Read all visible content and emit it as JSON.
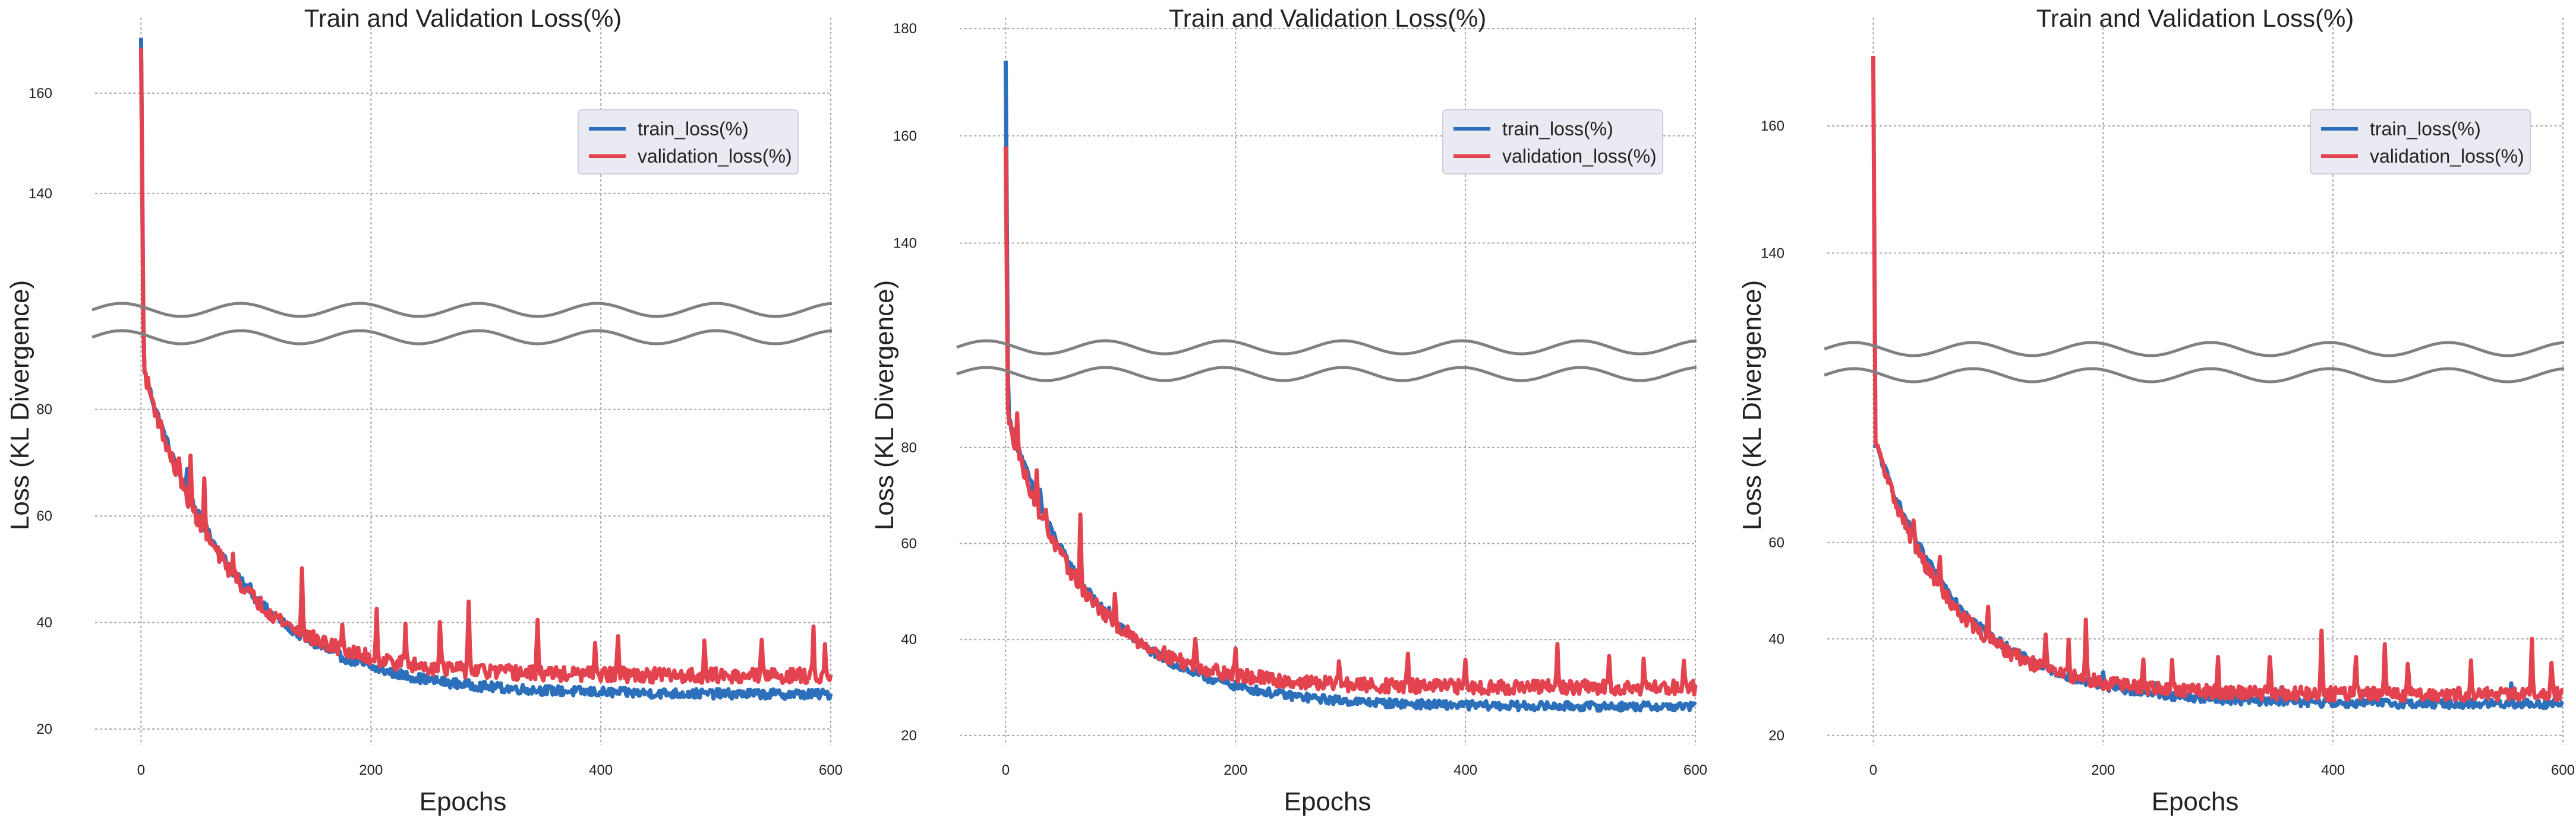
{
  "chart_data": [
    {
      "type": "line",
      "title": "Train and Validation Loss(%)",
      "xlabel": "Epochs",
      "ylabel": "Loss (KL Divergence)",
      "xlim": [
        -40,
        600
      ],
      "xticks": [
        0,
        200,
        400,
        600
      ],
      "broken_axis": true,
      "ylim_top": [
        120,
        175
      ],
      "yticks_top": [
        140,
        160
      ],
      "ylim_bottom": [
        17,
        90
      ],
      "yticks_bottom": [
        20,
        40,
        60,
        80
      ],
      "legend": {
        "position": "top-right",
        "entries": [
          "train_loss(%)",
          "validation_loss(%)"
        ]
      },
      "series": [
        {
          "name": "train_loss(%)",
          "color": "#2c6fbb",
          "start": 171,
          "after_spike": 87,
          "final": 26.5,
          "tau": 80,
          "noise": 0.9,
          "spikes": [
            [
              40,
              4
            ],
            [
              95,
              2
            ],
            [
              140,
              3
            ]
          ]
        },
        {
          "name": "validation_loss(%)",
          "color": "#e3434f",
          "start": 169,
          "after_spike": 87,
          "final": 30,
          "tau": 70,
          "noise": 1.4,
          "spikes": [
            [
              33,
              5
            ],
            [
              43,
              8
            ],
            [
              55,
              9
            ],
            [
              80,
              4
            ],
            [
              140,
              13
            ],
            [
              175,
              6
            ],
            [
              205,
              9
            ],
            [
              230,
              7
            ],
            [
              260,
              10
            ],
            [
              285,
              14
            ],
            [
              345,
              11
            ],
            [
              395,
              7
            ],
            [
              415,
              8
            ],
            [
              490,
              6
            ],
            [
              540,
              7
            ],
            [
              585,
              8
            ],
            [
              595,
              5
            ]
          ]
        }
      ]
    },
    {
      "type": "line",
      "title": "Train and Validation Loss(%)",
      "xlabel": "Epochs",
      "ylabel": "Loss (KL Divergence)",
      "xlim": [
        -40,
        600
      ],
      "xticks": [
        0,
        200,
        400,
        600
      ],
      "broken_axis": true,
      "ylim_top": [
        125,
        182
      ],
      "yticks_top": [
        140,
        160,
        180
      ],
      "ylim_bottom": [
        18,
        91
      ],
      "yticks_bottom": [
        20,
        40,
        60,
        80
      ],
      "legend": {
        "position": "top-right",
        "entries": [
          "train_loss(%)",
          "validation_loss(%)"
        ]
      },
      "series": [
        {
          "name": "train_loss(%)",
          "color": "#2c6fbb",
          "start": 174,
          "after_spike": 86,
          "final": 26,
          "tau": 75,
          "noise": 0.9,
          "spikes": [
            [
              30,
              3
            ],
            [
              90,
              2
            ]
          ]
        },
        {
          "name": "validation_loss(%)",
          "color": "#e3434f",
          "start": 158,
          "after_spike": 85,
          "final": 30,
          "tau": 65,
          "noise": 1.5,
          "spikes": [
            [
              10,
              8
            ],
            [
              27,
              6
            ],
            [
              35,
              4
            ],
            [
              65,
              14
            ],
            [
              95,
              5
            ],
            [
              165,
              6
            ],
            [
              200,
              5
            ],
            [
              290,
              6
            ],
            [
              350,
              7
            ],
            [
              400,
              6
            ],
            [
              480,
              8
            ],
            [
              525,
              7
            ],
            [
              555,
              6
            ],
            [
              590,
              6
            ]
          ]
        }
      ]
    },
    {
      "type": "line",
      "title": "Train and Validation Loss(%)",
      "xlabel": "Epochs",
      "ylabel": "Loss (KL Divergence)",
      "xlim": [
        -40,
        600
      ],
      "xticks": [
        0,
        200,
        400,
        600
      ],
      "broken_axis": true,
      "ylim_top": [
        128,
        177
      ],
      "yticks_top": [
        140,
        160
      ],
      "ylim_bottom": [
        18,
        90
      ],
      "yticks_bottom": [
        20,
        40,
        60
      ],
      "legend": {
        "position": "top-right",
        "entries": [
          "train_loss(%)",
          "validation_loss(%)"
        ]
      },
      "series": [
        {
          "name": "train_loss(%)",
          "color": "#2c6fbb",
          "start": 80,
          "after_spike": 80,
          "final": 26.5,
          "tau": 75,
          "noise": 0.9,
          "spikes": [
            [
              200,
              3
            ],
            [
              245,
              3
            ],
            [
              355,
              3
            ],
            [
              395,
              3
            ],
            [
              555,
              5
            ]
          ]
        },
        {
          "name": "validation_loss(%)",
          "color": "#e3434f",
          "start": 171,
          "after_spike": 80,
          "final": 28.5,
          "tau": 65,
          "noise": 1.4,
          "spikes": [
            [
              35,
              5
            ],
            [
              58,
              6
            ],
            [
              100,
              6
            ],
            [
              150,
              6
            ],
            [
              170,
              7
            ],
            [
              185,
              12
            ],
            [
              235,
              7
            ],
            [
              260,
              6
            ],
            [
              300,
              7
            ],
            [
              345,
              8
            ],
            [
              390,
              14
            ],
            [
              420,
              9
            ],
            [
              445,
              10
            ],
            [
              465,
              7
            ],
            [
              520,
              6
            ],
            [
              573,
              11
            ],
            [
              590,
              6
            ]
          ]
        }
      ]
    }
  ]
}
